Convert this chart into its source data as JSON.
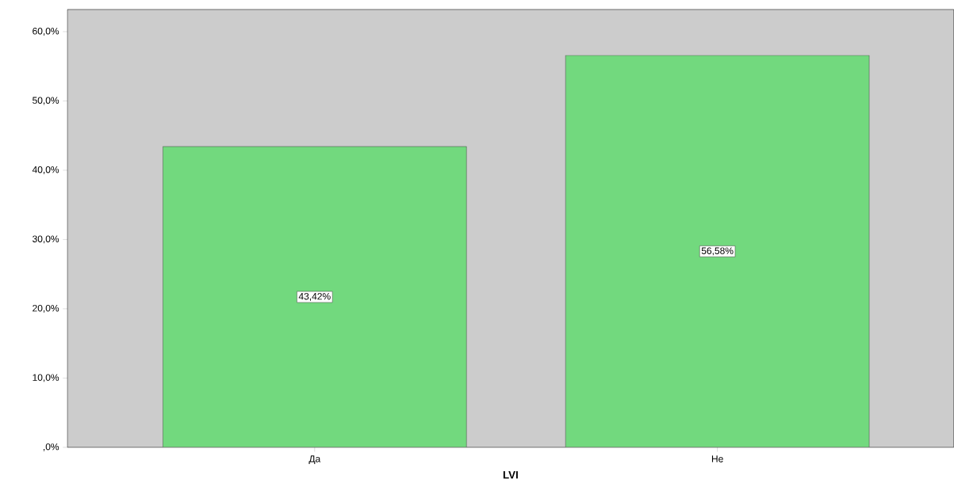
{
  "chart_data": {
    "type": "bar",
    "xlabel": "LVI",
    "categories": [
      "Да",
      "Не"
    ],
    "values": [
      43.42,
      56.58
    ],
    "value_labels": [
      "43,42%",
      "56,58%"
    ],
    "ylim": [
      0,
      63.2
    ],
    "yticks": [
      {
        "value": 0,
        "label": ",0%"
      },
      {
        "value": 10,
        "label": "10,0%"
      },
      {
        "value": 20,
        "label": "20,0%"
      },
      {
        "value": 30,
        "label": "30,0%"
      },
      {
        "value": 40,
        "label": "40,0%"
      },
      {
        "value": 50,
        "label": "50,0%"
      },
      {
        "value": 60,
        "label": "60,0%"
      }
    ],
    "color": "#72d97e"
  }
}
